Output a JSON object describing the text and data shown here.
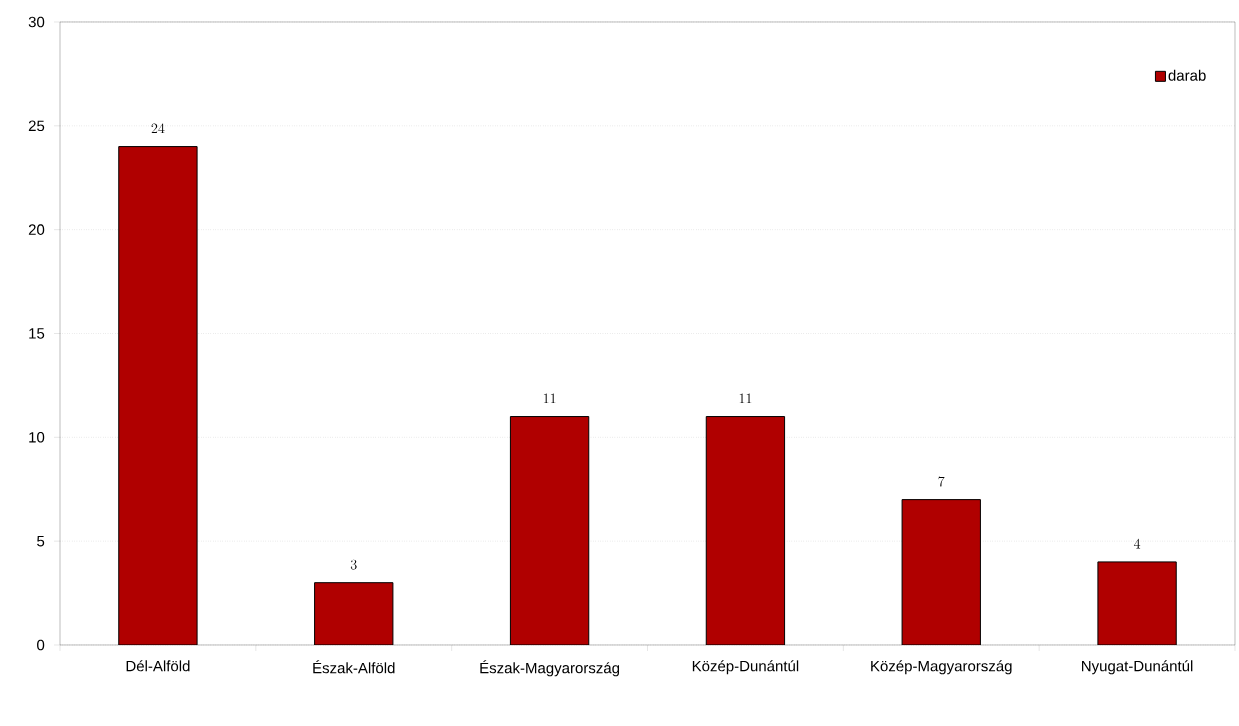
{
  "chart_data": {
    "type": "bar",
    "categories": [
      "Dél-Alföld",
      "Észak-Alföld",
      "Észak-Magyarország",
      "Közép-Dunántúl",
      "Közép-Magyarország",
      "Nyugat-Dunántúl"
    ],
    "series": [
      {
        "name": "darab",
        "color": "#b00000",
        "values": [
          24,
          3,
          11,
          11,
          7,
          4
        ]
      }
    ],
    "ylim": [
      0,
      30
    ],
    "yticks": [
      0,
      5,
      10,
      15,
      20,
      25,
      30
    ],
    "grid": "y",
    "legend": "top right",
    "data_labels": true
  }
}
